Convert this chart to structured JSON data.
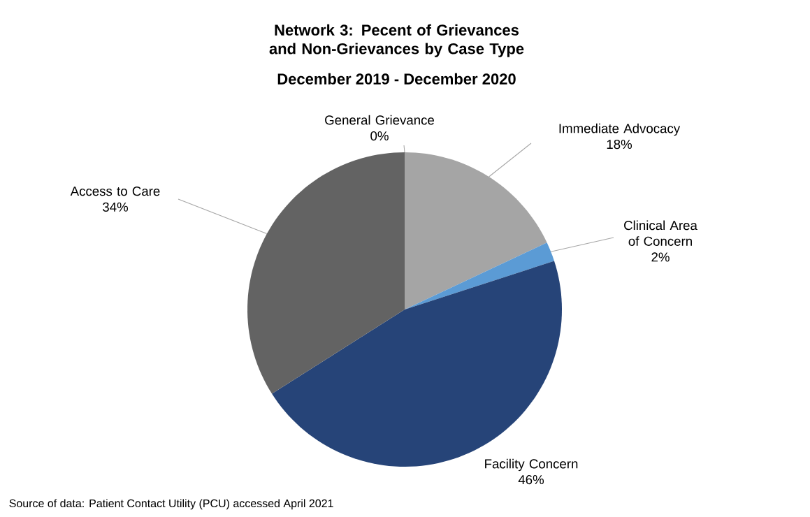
{
  "chart_data": {
    "type": "pie",
    "title": "Network 3: Pecent of Grievances and Non-Grievances by Case Type",
    "subtitle": "December 2019 - December 2020",
    "categories": [
      "General Grievance",
      "Immediate Advocacy",
      "Clinical Area of Concern",
      "Facility Concern",
      "Access to Care"
    ],
    "values": [
      0,
      18,
      2,
      46,
      34
    ],
    "value_labels": [
      "0%",
      "18%",
      "2%",
      "46%",
      "34%"
    ],
    "colors": [
      "#ffc000",
      "#a5a5a5",
      "#5b9bd5",
      "#264478",
      "#636363"
    ],
    "annotations": [
      "Source of data:  Patient Contact Utility (PCU) accessed April 2021"
    ]
  }
}
